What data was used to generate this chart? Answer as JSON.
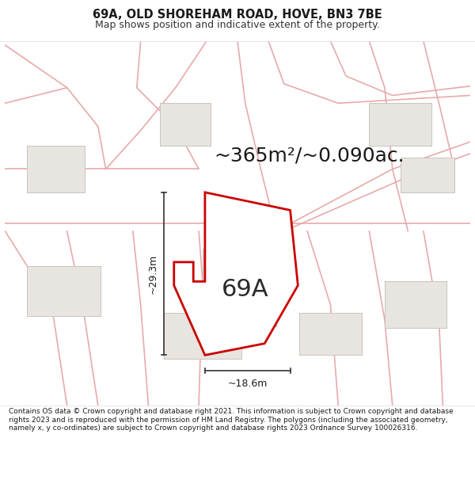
{
  "title_line1": "69A, OLD SHOREHAM ROAD, HOVE, BN3 7BE",
  "title_line2": "Map shows position and indicative extent of the property.",
  "area_text": "~365m²/~0.090ac.",
  "label_69A": "69A",
  "dim_width": "~18.6m",
  "dim_height": "~29.3m",
  "footer": "Contains OS data © Crown copyright and database right 2021. This information is subject to Crown copyright and database rights 2023 and is reproduced with the permission of HM Land Registry. The polygons (including the associated geometry, namely x, y co-ordinates) are subject to Crown copyright and database rights 2023 Ordnance Survey 100026316.",
  "map_bg": "#f5f3f0",
  "plot_fill": "#ffffff",
  "plot_edge": "#cc0000",
  "road_color": "#e8aaaa",
  "road_lw": 1.2,
  "building_fill": "#e8e4e0",
  "building_edge": "#c8c4c0",
  "footer_bg": "#ffffff",
  "title_bg": "#ffffff",
  "title_fontsize": 10.5,
  "subtitle_fontsize": 9,
  "area_fontsize": 18,
  "dim_fontsize": 9,
  "label_fontsize": 22
}
